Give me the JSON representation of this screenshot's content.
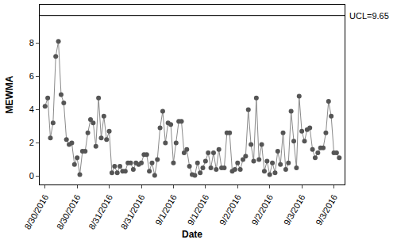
{
  "chart_data": {
    "type": "line",
    "x_label": "Date",
    "y_label": "MEWMA",
    "marker": "circle",
    "color": "#555555",
    "categories": [
      "8/30/2016",
      null,
      null,
      null,
      null,
      null,
      null,
      null,
      null,
      null,
      null,
      null,
      "8/30/2016",
      null,
      null,
      null,
      null,
      null,
      null,
      null,
      null,
      null,
      null,
      null,
      "8/31/2016",
      null,
      null,
      null,
      null,
      null,
      null,
      null,
      null,
      null,
      null,
      null,
      "8/31/2016",
      null,
      null,
      null,
      null,
      null,
      null,
      null,
      null,
      null,
      null,
      null,
      "9/1/2016",
      null,
      null,
      null,
      null,
      null,
      null,
      null,
      null,
      null,
      null,
      null,
      "9/1/2016",
      null,
      null,
      null,
      null,
      null,
      null,
      null,
      null,
      null,
      null,
      null,
      "9/2/2016",
      null,
      null,
      null,
      null,
      null,
      null,
      null,
      null,
      null,
      null,
      null,
      "9/2/2016",
      null,
      null,
      null,
      null,
      null,
      null,
      null,
      null,
      null,
      null,
      null,
      "9/3/2016",
      null,
      null,
      null,
      null,
      null,
      null,
      null,
      null,
      null,
      null,
      null,
      "9/3/2016",
      null,
      null
    ],
    "values": [
      4.2,
      4.7,
      2.3,
      3.2,
      7.2,
      8.1,
      4.9,
      4.4,
      2.2,
      1.9,
      2.0,
      0.7,
      1.1,
      0.1,
      1.5,
      1.5,
      2.6,
      3.4,
      3.2,
      1.8,
      4.7,
      2.3,
      3.6,
      2.2,
      2.7,
      0.2,
      0.6,
      0.2,
      0.6,
      0.3,
      0.3,
      0.8,
      0.8,
      0.4,
      0.8,
      0.7,
      0.8,
      1.3,
      1.3,
      0.3,
      0.8,
      0.05,
      1.0,
      2.9,
      3.9,
      2.0,
      3.2,
      3.1,
      0.8,
      2.0,
      3.3,
      3.3,
      1.4,
      1.6,
      0.6,
      0.1,
      0.05,
      0.8,
      0.2,
      0.5,
      0.9,
      1.4,
      0.5,
      1.4,
      0.4,
      1.6,
      0.5,
      0.5,
      2.6,
      2.6,
      0.3,
      0.4,
      0.8,
      0.4,
      1.0,
      1.2,
      4.0,
      1.9,
      0.9,
      4.7,
      1.0,
      1.9,
      0.3,
      0.9,
      0.1,
      0.8,
      0.2,
      1.5,
      0.7,
      2.6,
      0.4,
      0.8,
      3.9,
      2.1,
      0.5,
      4.8,
      2.7,
      2.1,
      2.8,
      2.9,
      1.6,
      1.1,
      1.4,
      1.7,
      1.7,
      2.6,
      4.5,
      3.6,
      1.4,
      1.4,
      1.1
    ],
    "ylim": [
      -0.5,
      10.3
    ],
    "yticks": [
      0,
      2,
      4,
      6,
      8
    ],
    "ucl": {
      "value": 9.65,
      "label": "UCL=9.65"
    },
    "grid": false
  }
}
